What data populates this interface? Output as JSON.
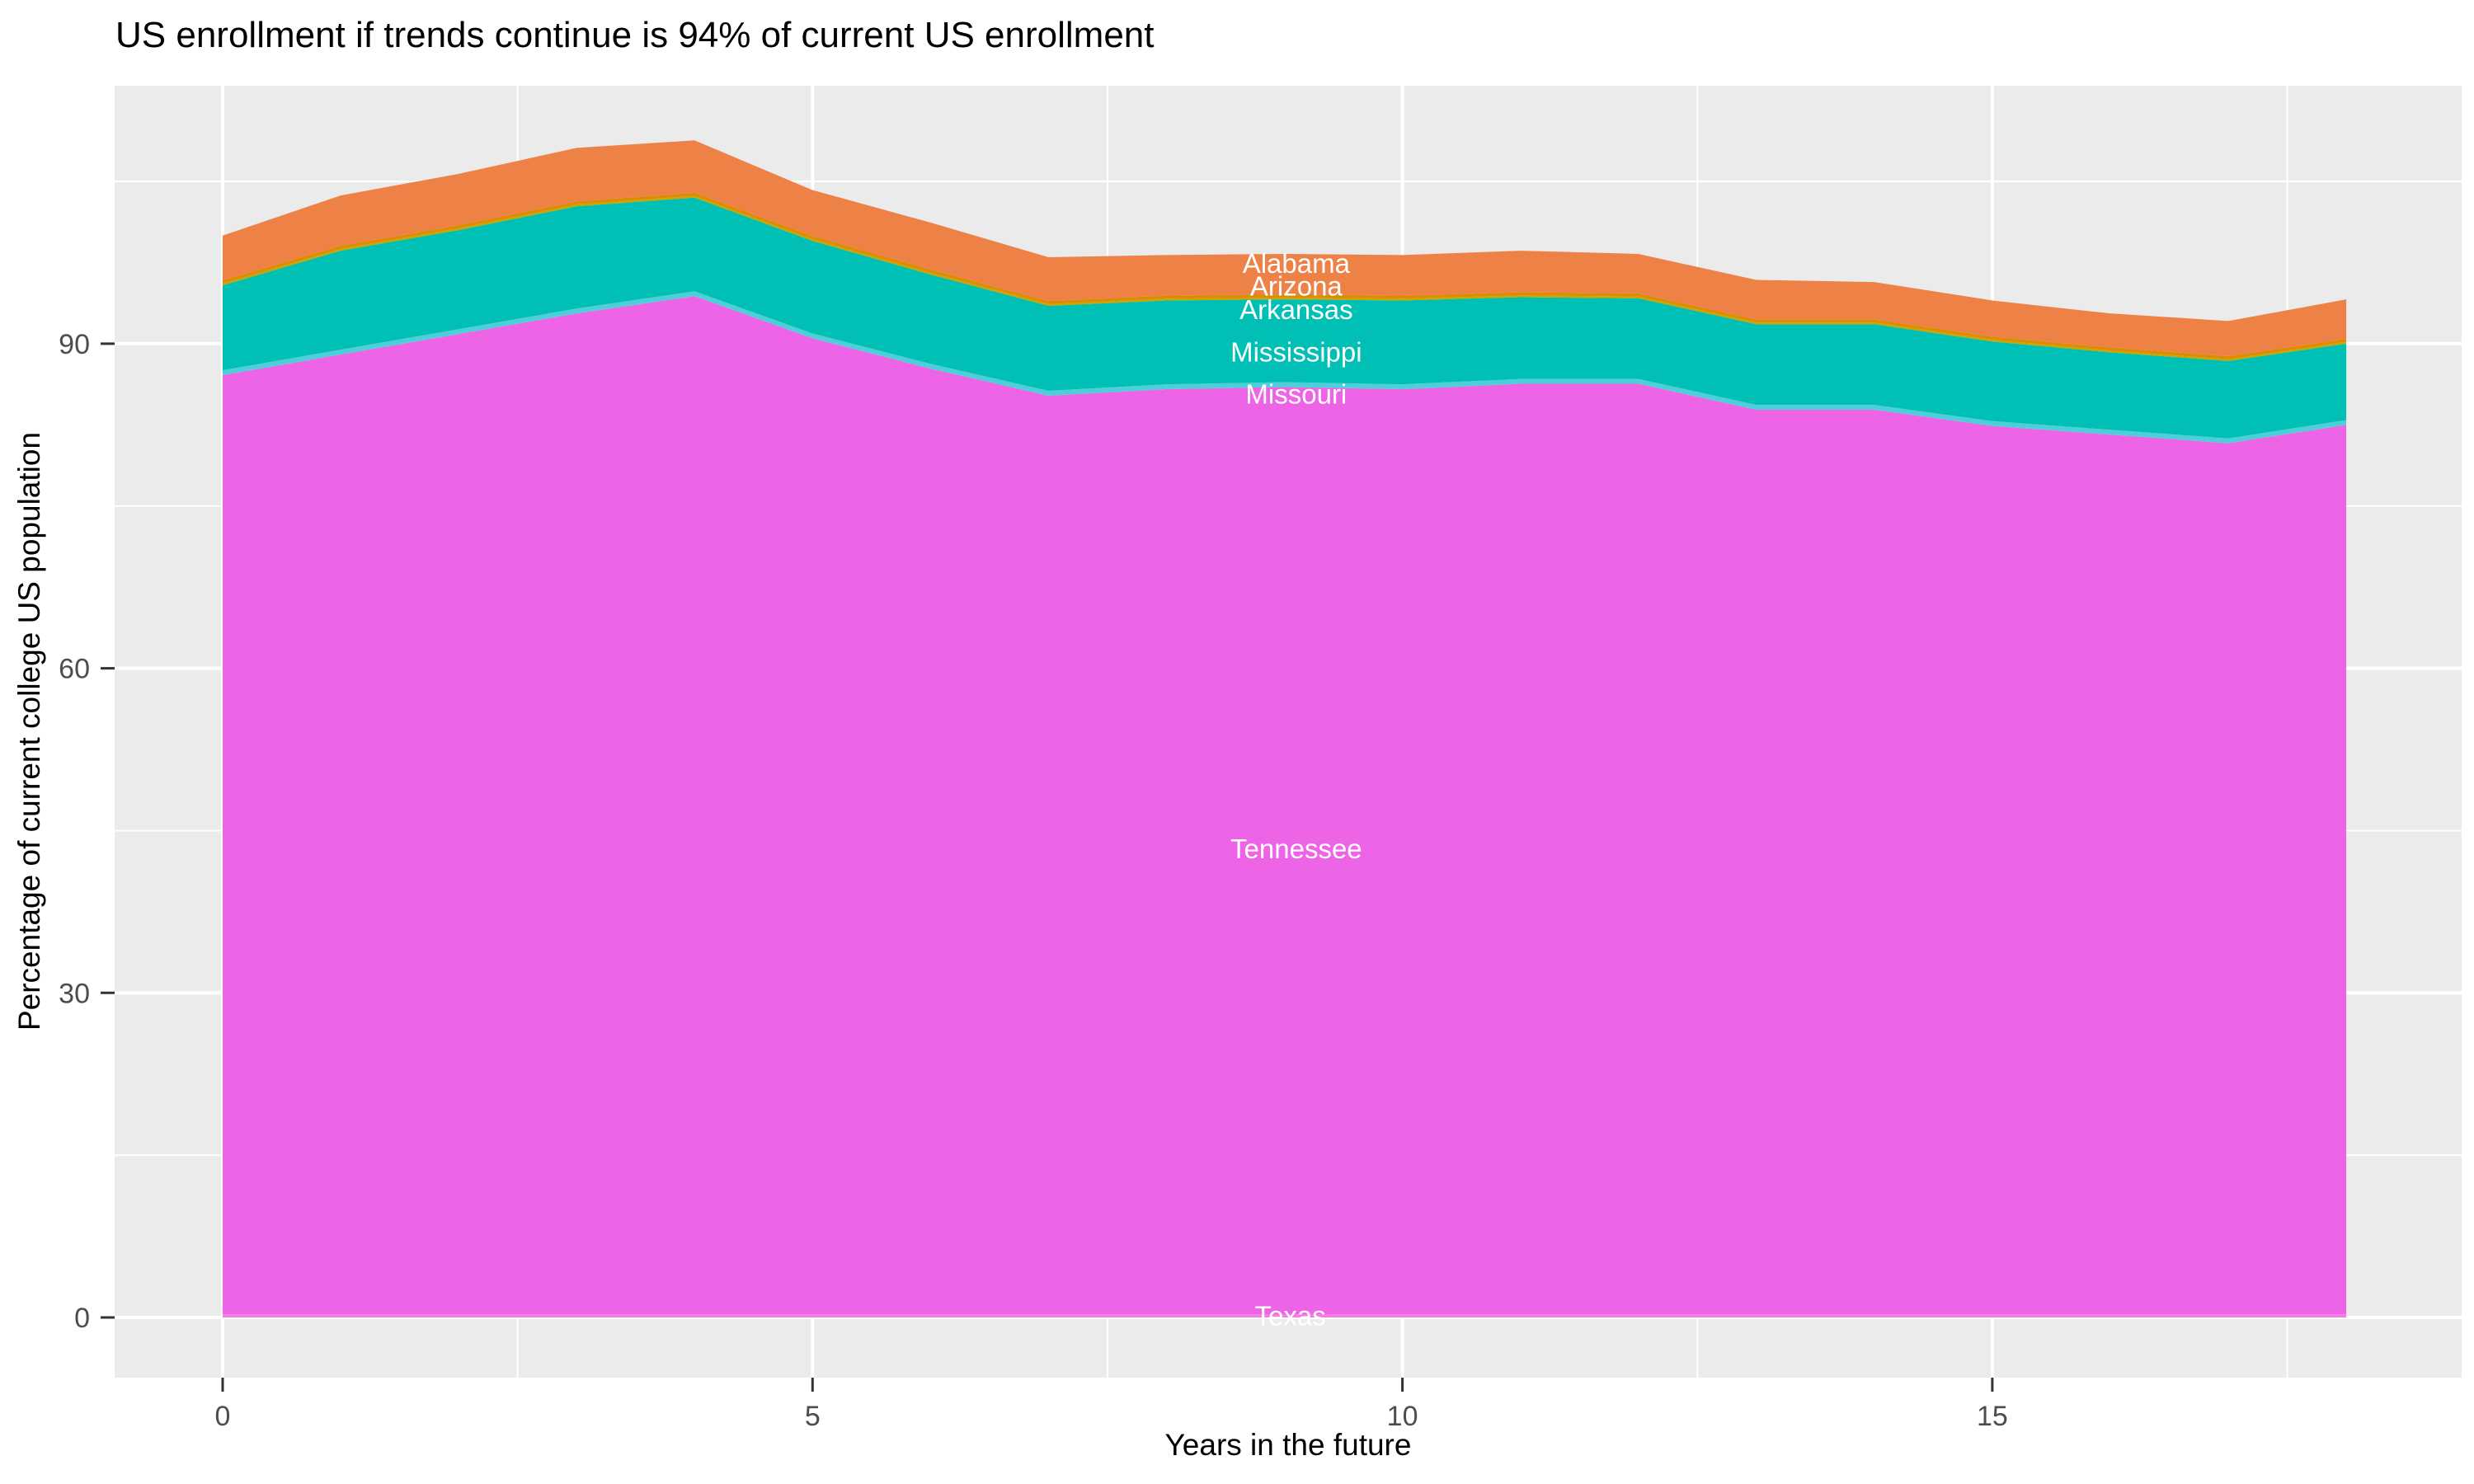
{
  "chart_data": {
    "type": "area",
    "title": "US enrollment if trends continue is 94% of current US enrollment",
    "xlabel": "Years in the future",
    "ylabel": "Percentage of current college US population",
    "x": [
      0,
      1,
      2,
      3,
      4,
      5,
      6,
      7,
      8,
      9,
      10,
      11,
      12,
      13,
      14,
      15,
      16,
      17,
      18
    ],
    "xlim": [
      0,
      18
    ],
    "ylim": [
      0,
      108.8
    ],
    "x_ticks": [
      0,
      5,
      10,
      15
    ],
    "x_minor_ticks": [
      2.5,
      7.5,
      12.5,
      17.5
    ],
    "y_ticks": [
      0,
      30,
      60,
      90
    ],
    "y_minor_ticks": [
      15,
      45,
      75,
      105
    ],
    "grid": true,
    "legend_position": "none",
    "panel_bg": "#EBEBEB",
    "grid_color": "#FFFFFF",
    "tick_color": "#333333",
    "tick_label_color": "#4D4D4D",
    "title_color": "#000000",
    "series": [
      {
        "name": "Alabama",
        "color": "#ED8146",
        "values": [
          4.15,
          4.65,
          4.75,
          4.95,
          4.85,
          4.25,
          4.35,
          4.05,
          3.75,
          3.75,
          3.75,
          3.85,
          3.65,
          3.65,
          3.45,
          3.35,
          3.15,
          3.25,
          3.65
        ]
      },
      {
        "name": "Arizona",
        "color": "#DB8C00",
        "values": [
          0.28,
          0.28,
          0.28,
          0.28,
          0.28,
          0.28,
          0.28,
          0.28,
          0.28,
          0.28,
          0.28,
          0.28,
          0.28,
          0.28,
          0.28,
          0.28,
          0.28,
          0.28,
          0.28
        ]
      },
      {
        "name": "Arkansas",
        "color": "#C9A500",
        "values": [
          0.17,
          0.17,
          0.17,
          0.17,
          0.17,
          0.17,
          0.17,
          0.17,
          0.17,
          0.17,
          0.17,
          0.17,
          0.17,
          0.17,
          0.17,
          0.17,
          0.17,
          0.17,
          0.17
        ]
      },
      {
        "name": "Mississippi",
        "color": "#00BFB4",
        "values": [
          7.85,
          9.15,
          9.15,
          9.45,
          8.65,
          8.55,
          8.25,
          7.85,
          7.75,
          7.65,
          7.75,
          7.55,
          7.45,
          7.45,
          7.45,
          7.35,
          7.15,
          7.15,
          7.05
        ]
      },
      {
        "name": "Missouri",
        "color": "#4DCFD9",
        "values": [
          0.45,
          0.45,
          0.45,
          0.45,
          0.45,
          0.45,
          0.45,
          0.45,
          0.45,
          0.45,
          0.45,
          0.45,
          0.45,
          0.45,
          0.45,
          0.45,
          0.45,
          0.45,
          0.45
        ]
      },
      {
        "name": "Tennessee",
        "color": "#EE64E6",
        "values": [
          86.8,
          88.7,
          90.6,
          92.5,
          94.1,
          90.2,
          87.4,
          84.9,
          85.5,
          85.7,
          85.5,
          86.0,
          86.0,
          83.6,
          83.6,
          82.1,
          81.3,
          80.5,
          82.2
        ]
      },
      {
        "name": "Texas",
        "color": "#F87BE2",
        "values": [
          0.3,
          0.3,
          0.3,
          0.3,
          0.3,
          0.3,
          0.3,
          0.3,
          0.3,
          0.3,
          0.3,
          0.3,
          0.3,
          0.3,
          0.3,
          0.3,
          0.3,
          0.3,
          0.3
        ]
      }
    ],
    "area_labels": [
      {
        "text": "Alabama",
        "x": 9.1,
        "y": 97.4,
        "color": "#FFFFFF"
      },
      {
        "text": "Arizona",
        "x": 9.1,
        "y": 95.3,
        "color": "#FFFFFF"
      },
      {
        "text": "Arkansas",
        "x": 9.1,
        "y": 93.1,
        "color": "#FFFFFF"
      },
      {
        "text": "Mississippi",
        "x": 9.1,
        "y": 89.2,
        "color": "#FFFFFF"
      },
      {
        "text": "Missouri",
        "x": 9.1,
        "y": 85.3,
        "color": "#FFFFFF"
      },
      {
        "text": "Tennessee",
        "x": 9.1,
        "y": 43.3,
        "color": "#FFFFFF"
      },
      {
        "text": "Texas",
        "x": 9.05,
        "y": 0.1,
        "color": "#FFFFFF"
      }
    ]
  }
}
